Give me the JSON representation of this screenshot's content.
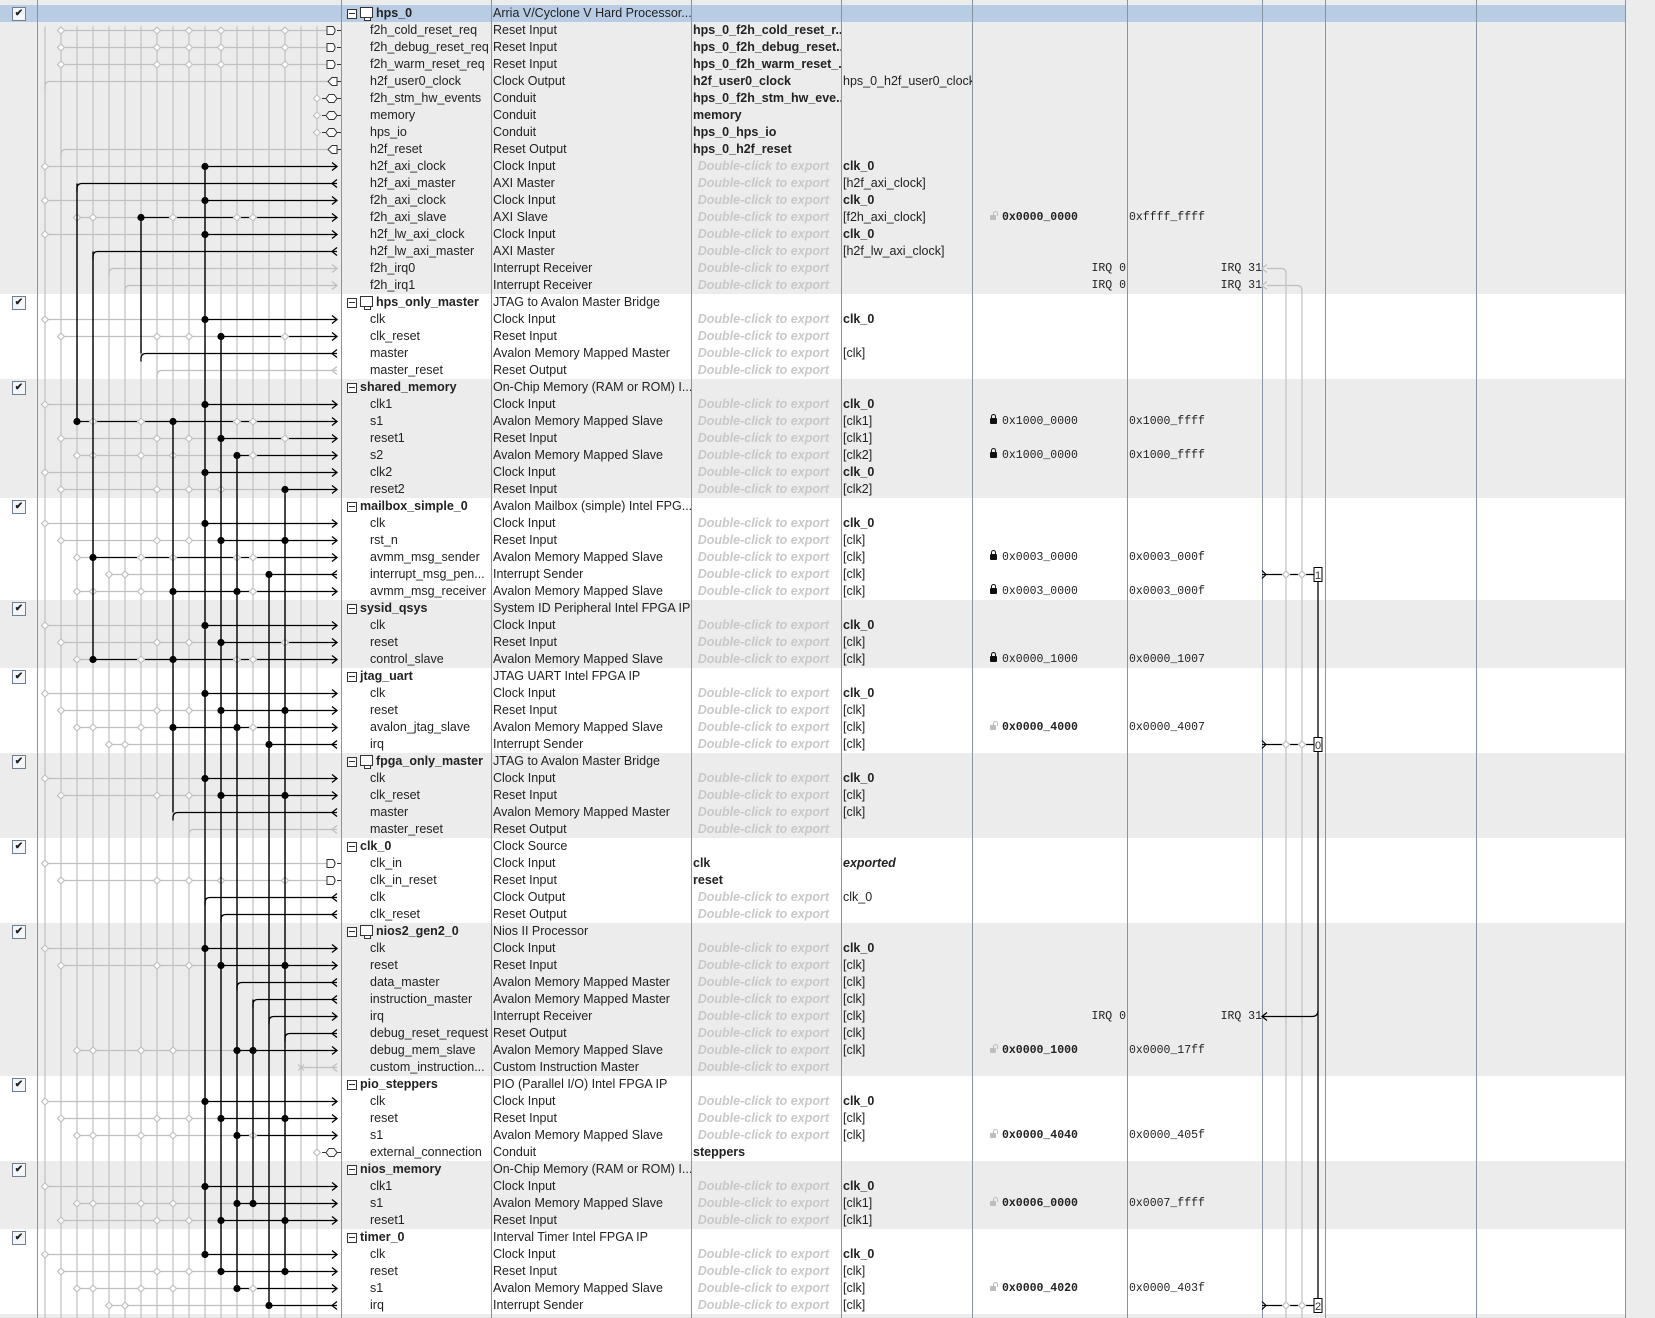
{
  "export_hint": "Double-click to export",
  "colors": {
    "selected_row": "#b8cde4",
    "row_gray": "#ececec",
    "row_white": "#ffffff",
    "hint_text": "#c8c8c8",
    "wire_active": "#000000",
    "wire_inactive": "#c0c0c0"
  },
  "rows": [
    {
      "hdr": true,
      "sel": true,
      "checked": true,
      "icon": "processor-icon",
      "n": "hps_0",
      "d": "Arria V/Cyclone V Hard Processor..."
    },
    {
      "n": "f2h_cold_reset_req",
      "d": "Reset Input",
      "e": "hps_0_f2h_cold_reset_r...",
      "es": "b"
    },
    {
      "n": "f2h_debug_reset_req",
      "d": "Reset Input",
      "e": "hps_0_f2h_debug_reset...",
      "es": "b"
    },
    {
      "n": "f2h_warm_reset_req",
      "d": "Reset Input",
      "e": "hps_0_f2h_warm_reset_...",
      "es": "b"
    },
    {
      "n": "h2f_user0_clock",
      "d": "Clock Output",
      "e": "h2f_user0_clock",
      "es": "b",
      "c": "hps_0_h2f_user0_clock"
    },
    {
      "n": "f2h_stm_hw_events",
      "d": "Conduit",
      "e": "hps_0_f2h_stm_hw_eve...",
      "es": "b"
    },
    {
      "n": "memory",
      "d": "Conduit",
      "e": "memory",
      "es": "b"
    },
    {
      "n": "hps_io",
      "d": "Conduit",
      "e": "hps_0_hps_io",
      "es": "b"
    },
    {
      "n": "h2f_reset",
      "d": "Reset Output",
      "e": "hps_0_h2f_reset",
      "es": "b"
    },
    {
      "n": "h2f_axi_clock",
      "d": "Clock Input",
      "hint": true,
      "c": "clk_0",
      "cs": "b"
    },
    {
      "n": "h2f_axi_master",
      "d": "AXI Master",
      "hint": true,
      "c": "[h2f_axi_clock]"
    },
    {
      "n": "f2h_axi_clock",
      "d": "Clock Input",
      "hint": true,
      "c": "clk_0",
      "cs": "b"
    },
    {
      "n": "f2h_axi_slave",
      "d": "AXI Slave",
      "hint": true,
      "c": "[f2h_axi_clock]",
      "base": "0x0000_0000",
      "lk": "open",
      "end": "0xffff_ffff"
    },
    {
      "n": "h2f_lw_axi_clock",
      "d": "Clock Input",
      "hint": true,
      "c": "clk_0",
      "cs": "b"
    },
    {
      "n": "h2f_lw_axi_master",
      "d": "AXI Master",
      "hint": true,
      "c": "[h2f_lw_axi_clock]"
    },
    {
      "n": "f2h_irq0",
      "d": "Interrupt Receiver",
      "hint": true,
      "i0": "IRQ 0",
      "i31": "IRQ 31"
    },
    {
      "n": "f2h_irq1",
      "d": "Interrupt Receiver",
      "hint": true,
      "i0": "IRQ 0",
      "i31": "IRQ 31"
    },
    {
      "hdr": true,
      "checked": true,
      "icon": "processor-icon",
      "n": "hps_only_master",
      "d": "JTAG to Avalon Master Bridge"
    },
    {
      "n": "clk",
      "d": "Clock Input",
      "hint": true,
      "c": "clk_0",
      "cs": "b"
    },
    {
      "n": "clk_reset",
      "d": "Reset Input",
      "hint": true
    },
    {
      "n": "master",
      "d": "Avalon Memory Mapped Master",
      "hint": true,
      "c": "[clk]"
    },
    {
      "n": "master_reset",
      "d": "Reset Output",
      "hint": true
    },
    {
      "hdr": true,
      "checked": true,
      "n": "shared_memory",
      "d": "On-Chip Memory (RAM or ROM) I..."
    },
    {
      "n": "clk1",
      "d": "Clock Input",
      "hint": true,
      "c": "clk_0",
      "cs": "b"
    },
    {
      "n": "s1",
      "d": "Avalon Memory Mapped Slave",
      "hint": true,
      "c": "[clk1]",
      "base": "0x1000_0000",
      "lk": "closed",
      "end": "0x1000_ffff"
    },
    {
      "n": "reset1",
      "d": "Reset Input",
      "hint": true,
      "c": "[clk1]"
    },
    {
      "n": "s2",
      "d": "Avalon Memory Mapped Slave",
      "hint": true,
      "c": "[clk2]",
      "base": "0x1000_0000",
      "lk": "closed",
      "end": "0x1000_ffff"
    },
    {
      "n": "clk2",
      "d": "Clock Input",
      "hint": true,
      "c": "clk_0",
      "cs": "b"
    },
    {
      "n": "reset2",
      "d": "Reset Input",
      "hint": true,
      "c": "[clk2]"
    },
    {
      "hdr": true,
      "checked": true,
      "n": "mailbox_simple_0",
      "d": "Avalon Mailbox (simple) Intel FPG..."
    },
    {
      "n": "clk",
      "d": "Clock Input",
      "hint": true,
      "c": "clk_0",
      "cs": "b"
    },
    {
      "n": "rst_n",
      "d": "Reset Input",
      "hint": true,
      "c": "[clk]"
    },
    {
      "n": "avmm_msg_sender",
      "d": "Avalon Memory Mapped Slave",
      "hint": true,
      "c": "[clk]",
      "base": "0x0003_0000",
      "lk": "closed",
      "end": "0x0003_000f"
    },
    {
      "n": "interrupt_msg_pen...",
      "d": "Interrupt Sender",
      "hint": true,
      "c": "[clk]",
      "irq": "1"
    },
    {
      "n": "avmm_msg_receiver",
      "d": "Avalon Memory Mapped Slave",
      "hint": true,
      "c": "[clk]",
      "base": "0x0003_0000",
      "lk": "closed",
      "end": "0x0003_000f"
    },
    {
      "hdr": true,
      "checked": true,
      "n": "sysid_qsys",
      "d": "System ID Peripheral Intel FPGA IP"
    },
    {
      "n": "clk",
      "d": "Clock Input",
      "hint": true,
      "c": "clk_0",
      "cs": "b"
    },
    {
      "n": "reset",
      "d": "Reset Input",
      "hint": true,
      "c": "[clk]"
    },
    {
      "n": "control_slave",
      "d": "Avalon Memory Mapped Slave",
      "hint": true,
      "c": "[clk]",
      "base": "0x0000_1000",
      "lk": "closed",
      "end": "0x0000_1007"
    },
    {
      "hdr": true,
      "checked": true,
      "n": "jtag_uart",
      "d": "JTAG UART Intel FPGA IP"
    },
    {
      "n": "clk",
      "d": "Clock Input",
      "hint": true,
      "c": "clk_0",
      "cs": "b"
    },
    {
      "n": "reset",
      "d": "Reset Input",
      "hint": true,
      "c": "[clk]"
    },
    {
      "n": "avalon_jtag_slave",
      "d": "Avalon Memory Mapped Slave",
      "hint": true,
      "c": "[clk]",
      "base": "0x0000_4000",
      "lk": "open",
      "end": "0x0000_4007"
    },
    {
      "n": "irq",
      "d": "Interrupt Sender",
      "hint": true,
      "c": "[clk]",
      "irq": "0"
    },
    {
      "hdr": true,
      "checked": true,
      "icon": "processor-icon",
      "n": "fpga_only_master",
      "d": "JTAG to Avalon Master Bridge"
    },
    {
      "n": "clk",
      "d": "Clock Input",
      "hint": true,
      "c": "clk_0",
      "cs": "b"
    },
    {
      "n": "clk_reset",
      "d": "Reset Input",
      "hint": true,
      "c": "[clk]"
    },
    {
      "n": "master",
      "d": "Avalon Memory Mapped Master",
      "hint": true,
      "c": "[clk]"
    },
    {
      "n": "master_reset",
      "d": "Reset Output",
      "hint": true
    },
    {
      "hdr": true,
      "checked": true,
      "n": "clk_0",
      "d": "Clock Source"
    },
    {
      "n": "clk_in",
      "d": "Clock Input",
      "e": "clk",
      "es": "b",
      "c": "exported",
      "cs": "bi"
    },
    {
      "n": "clk_in_reset",
      "d": "Reset Input",
      "e": "reset",
      "es": "b"
    },
    {
      "n": "clk",
      "d": "Clock Output",
      "hint": true,
      "c": "clk_0"
    },
    {
      "n": "clk_reset",
      "d": "Reset Output",
      "hint": true
    },
    {
      "hdr": true,
      "checked": true,
      "icon": "processor-icon",
      "n": "nios2_gen2_0",
      "d": "Nios II Processor"
    },
    {
      "n": "clk",
      "d": "Clock Input",
      "hint": true,
      "c": "clk_0",
      "cs": "b"
    },
    {
      "n": "reset",
      "d": "Reset Input",
      "hint": true,
      "c": "[clk]"
    },
    {
      "n": "data_master",
      "d": "Avalon Memory Mapped Master",
      "hint": true,
      "c": "[clk]"
    },
    {
      "n": "instruction_master",
      "d": "Avalon Memory Mapped Master",
      "hint": true,
      "c": "[clk]"
    },
    {
      "n": "irq",
      "d": "Interrupt Receiver",
      "hint": true,
      "c": "[clk]",
      "i0": "IRQ 0",
      "i31": "IRQ 31"
    },
    {
      "n": "debug_reset_request",
      "d": "Reset Output",
      "hint": true,
      "c": "[clk]"
    },
    {
      "n": "debug_mem_slave",
      "d": "Avalon Memory Mapped Slave",
      "hint": true,
      "c": "[clk]",
      "base": "0x0000_1000",
      "lk": "open",
      "end": "0x0000_17ff"
    },
    {
      "n": "custom_instruction...",
      "d": "Custom Instruction Master",
      "hint": true
    },
    {
      "hdr": true,
      "checked": true,
      "n": "pio_steppers",
      "d": "PIO (Parallel I/O) Intel FPGA IP"
    },
    {
      "n": "clk",
      "d": "Clock Input",
      "hint": true,
      "c": "clk_0",
      "cs": "b"
    },
    {
      "n": "reset",
      "d": "Reset Input",
      "hint": true,
      "c": "[clk]"
    },
    {
      "n": "s1",
      "d": "Avalon Memory Mapped Slave",
      "hint": true,
      "c": "[clk]",
      "base": "0x0000_4040",
      "lk": "open",
      "end": "0x0000_405f"
    },
    {
      "n": "external_connection",
      "d": "Conduit",
      "e": "steppers",
      "es": "b"
    },
    {
      "hdr": true,
      "checked": true,
      "n": "nios_memory",
      "d": "On-Chip Memory (RAM or ROM) I..."
    },
    {
      "n": "clk1",
      "d": "Clock Input",
      "hint": true,
      "c": "clk_0",
      "cs": "b"
    },
    {
      "n": "s1",
      "d": "Avalon Memory Mapped Slave",
      "hint": true,
      "c": "[clk1]",
      "base": "0x0006_0000",
      "lk": "open",
      "end": "0x0007_ffff"
    },
    {
      "n": "reset1",
      "d": "Reset Input",
      "hint": true,
      "c": "[clk1]"
    },
    {
      "hdr": true,
      "checked": true,
      "n": "timer_0",
      "d": "Interval Timer Intel FPGA IP"
    },
    {
      "n": "clk",
      "d": "Clock Input",
      "hint": true,
      "c": "clk_0",
      "cs": "b"
    },
    {
      "n": "reset",
      "d": "Reset Input",
      "hint": true,
      "c": "[clk]"
    },
    {
      "n": "s1",
      "d": "Avalon Memory Mapped Slave",
      "hint": true,
      "c": "[clk]",
      "base": "0x0000_4020",
      "lk": "open",
      "end": "0x0000_403f"
    },
    {
      "n": "irq",
      "d": "Interrupt Sender",
      "hint": true,
      "c": "[clk]",
      "irq": "2"
    }
  ]
}
